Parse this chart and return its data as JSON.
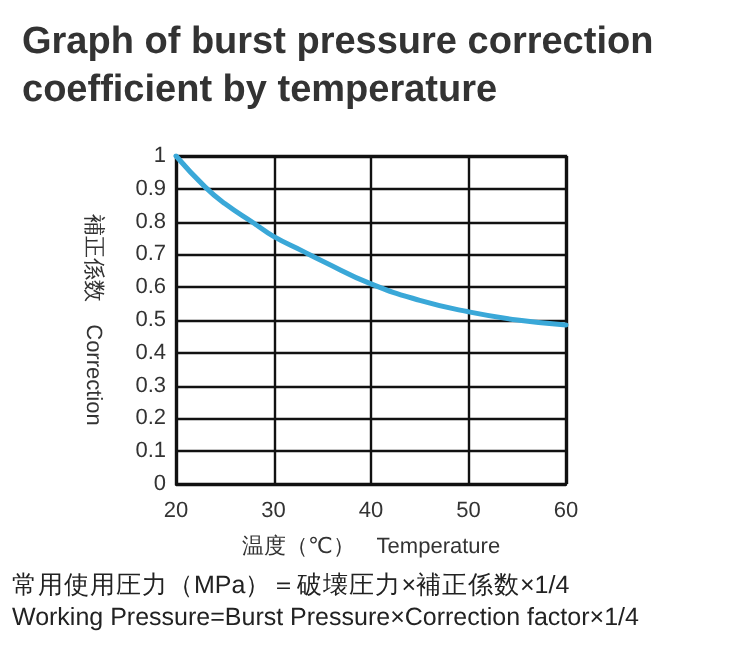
{
  "chart_data": {
    "type": "line",
    "title": "Graph of burst pressure correction coefficient by temperature",
    "xlabel": "温度（℃）　Temperature",
    "ylabel": "補正係数　Correction",
    "annotations": [
      "常用使用圧力（MPa）＝破壊圧力×補正係数×1/4",
      "Working Pressure=Burst Pressure×Correction factor×1/4"
    ],
    "x": [
      20,
      23,
      25,
      28,
      30,
      33,
      35,
      40,
      45,
      50,
      55,
      60
    ],
    "series": [
      {
        "color": "#3aa8d8",
        "values": [
          1.0,
          0.905,
          0.855,
          0.795,
          0.755,
          0.71,
          0.68,
          0.61,
          0.56,
          0.525,
          0.5,
          0.485
        ]
      }
    ],
    "xlim": [
      20,
      60
    ],
    "xticks": [
      20,
      30,
      40,
      50,
      60
    ],
    "ylim": [
      0,
      1
    ],
    "yticks": [
      0,
      0.1,
      0.2,
      0.3,
      0.4,
      0.5,
      0.6,
      0.7,
      0.8,
      0.9,
      1
    ],
    "grid": true,
    "marker": "none",
    "line_style": "solid"
  }
}
